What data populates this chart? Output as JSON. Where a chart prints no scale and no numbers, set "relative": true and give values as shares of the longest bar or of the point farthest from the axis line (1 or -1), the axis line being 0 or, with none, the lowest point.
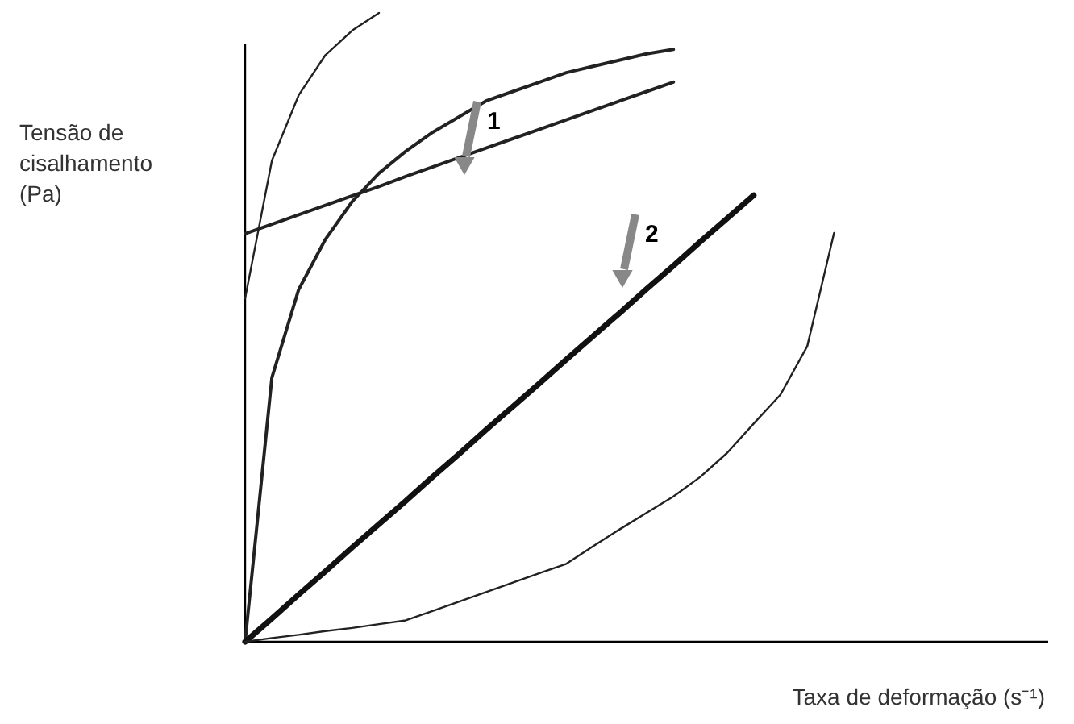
{
  "chart_data": {
    "type": "line",
    "relative": true,
    "xlabel": "Taxa de deformação (s⁻¹)",
    "ylabel": "Tensão de\ncisalhamento\n(Pa)",
    "marker": "none",
    "line_style": "solid",
    "categories": [
      null,
      null,
      null,
      null,
      null,
      null,
      null,
      null,
      null,
      null,
      null,
      null,
      null,
      null,
      null,
      null,
      null,
      null,
      null,
      null,
      null,
      null,
      null,
      null,
      null,
      null,
      null,
      null,
      null,
      null,
      null
    ],
    "series": [
      {
        "color": "#222222",
        "values": [
          0.546,
          0.765,
          0.869,
          0.933,
          0.972,
          1.0,
          null,
          null,
          null,
          null,
          null,
          null,
          null,
          null,
          null,
          null,
          null,
          null,
          null,
          null,
          null,
          null,
          null,
          null,
          null,
          null,
          null,
          null,
          null,
          null,
          null
        ]
      },
      {
        "color": "#222222",
        "values": [
          0.649,
          0.664,
          0.679,
          0.694,
          0.709,
          0.724,
          0.74,
          0.755,
          0.77,
          0.785,
          0.8,
          0.815,
          0.83,
          0.845,
          0.86,
          0.875,
          0.89,
          null,
          null,
          null,
          null,
          null,
          null,
          null,
          null,
          null,
          null,
          null,
          null,
          null,
          null
        ]
      },
      {
        "color": "#222222",
        "values": [
          0,
          0.42,
          0.56,
          0.64,
          0.7,
          0.745,
          0.78,
          0.81,
          0.835,
          0.86,
          0.875,
          0.89,
          0.905,
          0.915,
          0.925,
          0.935,
          0.942,
          null,
          null,
          null,
          null,
          null,
          null,
          null,
          null,
          null,
          null,
          null,
          null,
          null,
          null
        ]
      },
      {
        "color": "#111111",
        "values": [
          0,
          0.037,
          0.075,
          0.112,
          0.15,
          0.187,
          0.224,
          0.262,
          0.299,
          0.337,
          0.374,
          0.411,
          0.449,
          0.486,
          0.523,
          0.561,
          0.598,
          0.636,
          0.673,
          0.71,
          null,
          null,
          null,
          null,
          null,
          null,
          null,
          null,
          null,
          null,
          null
        ]
      },
      {
        "color": "#222222",
        "values": [
          0,
          0.006,
          0.011,
          0.017,
          0.022,
          0.028,
          0.034,
          0.049,
          0.064,
          0.079,
          0.094,
          0.109,
          0.124,
          0.152,
          0.179,
          0.205,
          0.231,
          0.262,
          0.3,
          0.347,
          0.393,
          0.47,
          0.65,
          null,
          null,
          null,
          null,
          null,
          null,
          null,
          null
        ]
      }
    ],
    "annotations": [
      "1",
      "2"
    ]
  }
}
